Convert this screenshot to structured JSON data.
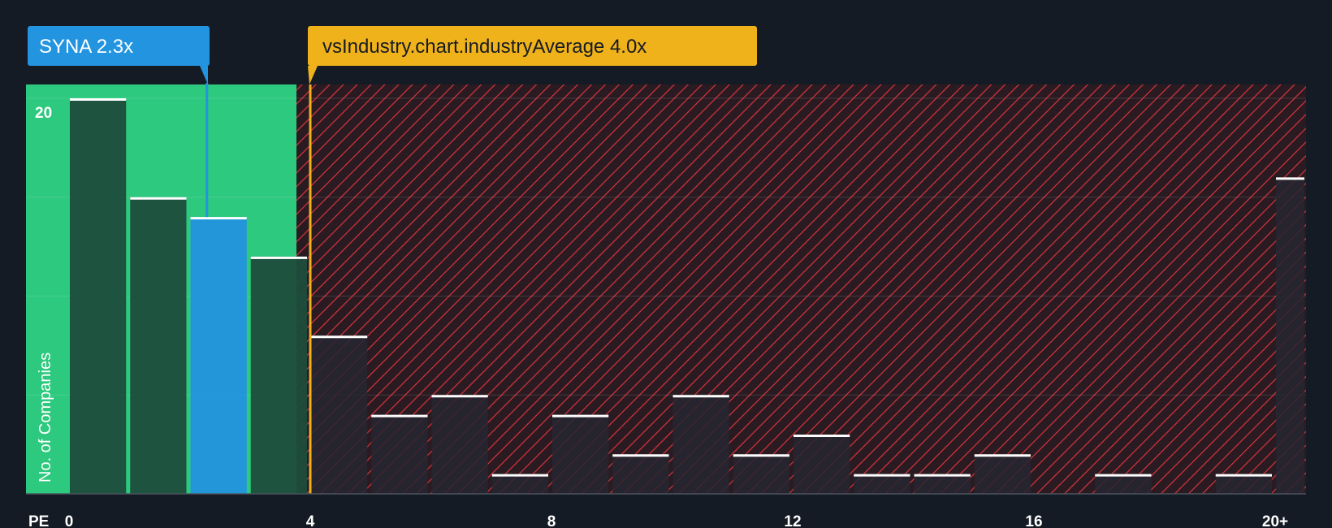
{
  "chart_data": {
    "type": "bar",
    "title": "",
    "xlabel": "PE",
    "ylabel": "No. of Companies",
    "x_ticks": [
      "0",
      "4",
      "8",
      "12",
      "16",
      "20+"
    ],
    "y_ticks": [
      "20"
    ],
    "ylim": [
      0,
      20.7
    ],
    "xlim": [
      0,
      20.5
    ],
    "bins": [
      {
        "start": 0,
        "end": 1,
        "count": 20
      },
      {
        "start": 1,
        "end": 2,
        "count": 15
      },
      {
        "start": 2,
        "end": 3,
        "count": 14
      },
      {
        "start": 3,
        "end": 4,
        "count": 12
      },
      {
        "start": 4,
        "end": 5,
        "count": 8
      },
      {
        "start": 5,
        "end": 6,
        "count": 4
      },
      {
        "start": 6,
        "end": 7,
        "count": 5
      },
      {
        "start": 7,
        "end": 8,
        "count": 1
      },
      {
        "start": 8,
        "end": 9,
        "count": 4
      },
      {
        "start": 9,
        "end": 10,
        "count": 2
      },
      {
        "start": 10,
        "end": 11,
        "count": 5
      },
      {
        "start": 11,
        "end": 12,
        "count": 2
      },
      {
        "start": 12,
        "end": 13,
        "count": 3
      },
      {
        "start": 13,
        "end": 14,
        "count": 1
      },
      {
        "start": 14,
        "end": 15,
        "count": 1
      },
      {
        "start": 15,
        "end": 16,
        "count": 2
      },
      {
        "start": 16,
        "end": 17,
        "count": 0
      },
      {
        "start": 17,
        "end": 18,
        "count": 1
      },
      {
        "start": 18,
        "end": 19,
        "count": 0
      },
      {
        "start": 19,
        "end": 20,
        "count": 1
      },
      {
        "start": 20,
        "end": 21,
        "count": 16
      }
    ],
    "company": {
      "label": "SYNA 2.3x",
      "value": 2.3,
      "highlight_bin": 2
    },
    "industry_average": {
      "label": "vsIndustry.chart.industryAverage 4.0x",
      "value": 4.0
    },
    "colors": {
      "background": "#151b24",
      "good_zone": "#2dc97e",
      "good_bar": "#1d4d3d",
      "company_bar": "#2394df",
      "bad_zone": "#e13a3f",
      "bad_bar": "#262630",
      "bar_top": "#ffffff",
      "industry_line": "#f0b21a",
      "company_callout": "#2394df",
      "industry_callout": "#f0b21a"
    }
  }
}
